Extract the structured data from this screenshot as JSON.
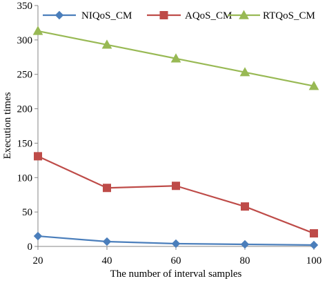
{
  "chart_data": {
    "type": "line",
    "title": "",
    "xlabel": "The number of interval samples",
    "ylabel": "Execution times",
    "x": [
      20,
      40,
      60,
      80,
      100
    ],
    "xticks": [
      "20",
      "40",
      "60",
      "80",
      "100"
    ],
    "yticks": [
      "0",
      "50",
      "100",
      "150",
      "200",
      "250",
      "300",
      "350"
    ],
    "xlim": [
      20,
      100
    ],
    "ylim": [
      0,
      350
    ],
    "grid": false,
    "legend_position": "top",
    "series": [
      {
        "name": "NIQoS_CM",
        "values": [
          15,
          7,
          4,
          3,
          2
        ],
        "color": "#4a7ebb",
        "marker": "diamond"
      },
      {
        "name": "AQoS_CM",
        "values": [
          131,
          85,
          88,
          58,
          19
        ],
        "color": "#be4b48",
        "marker": "square"
      },
      {
        "name": "RTQoS_CM",
        "values": [
          313,
          293,
          273,
          253,
          233
        ],
        "color": "#98b954",
        "marker": "triangle"
      }
    ]
  }
}
